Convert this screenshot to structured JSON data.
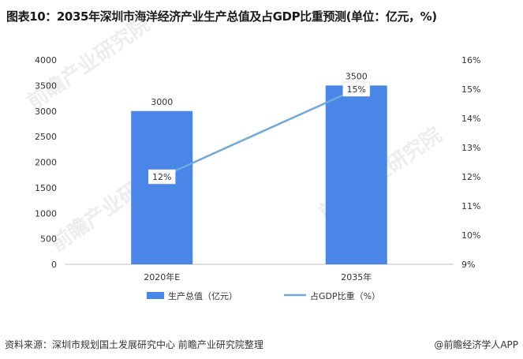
{
  "title": "图表10：2035年深圳市海洋经济产业生产总值及占GDP比重预测(单位：亿元，%)",
  "source": "资料来源：深圳市规划国土发展研究中心 前瞻产业研究院整理",
  "logo_text": "@前瞻经济学人APP",
  "watermark_text": "前瞻产业研究院",
  "colors": {
    "bar": "#4a86e8",
    "line": "#6fa8dc",
    "axis": "#bfbfbf",
    "text": "#333333"
  },
  "chart_data": {
    "type": "bar",
    "categories": [
      "2020年E",
      "2035年"
    ],
    "series": [
      {
        "name": "生产总值（亿元）",
        "type": "bar",
        "axis": "left",
        "values": [
          3000,
          3500
        ],
        "labels": [
          "3000",
          "3500"
        ]
      },
      {
        "name": "占GDP比重（%）",
        "type": "line",
        "axis": "right",
        "values": [
          12,
          15
        ],
        "labels": [
          "12%",
          "15%"
        ]
      }
    ],
    "y_left": {
      "min": 0,
      "max": 4000,
      "ticks": [
        0,
        500,
        1000,
        1500,
        2000,
        2500,
        3000,
        3500,
        4000
      ]
    },
    "y_right": {
      "min": 9,
      "max": 16,
      "ticks": [
        "9%",
        "10%",
        "11%",
        "12%",
        "13%",
        "14%",
        "15%",
        "16%"
      ]
    },
    "legend_position": "bottom"
  }
}
